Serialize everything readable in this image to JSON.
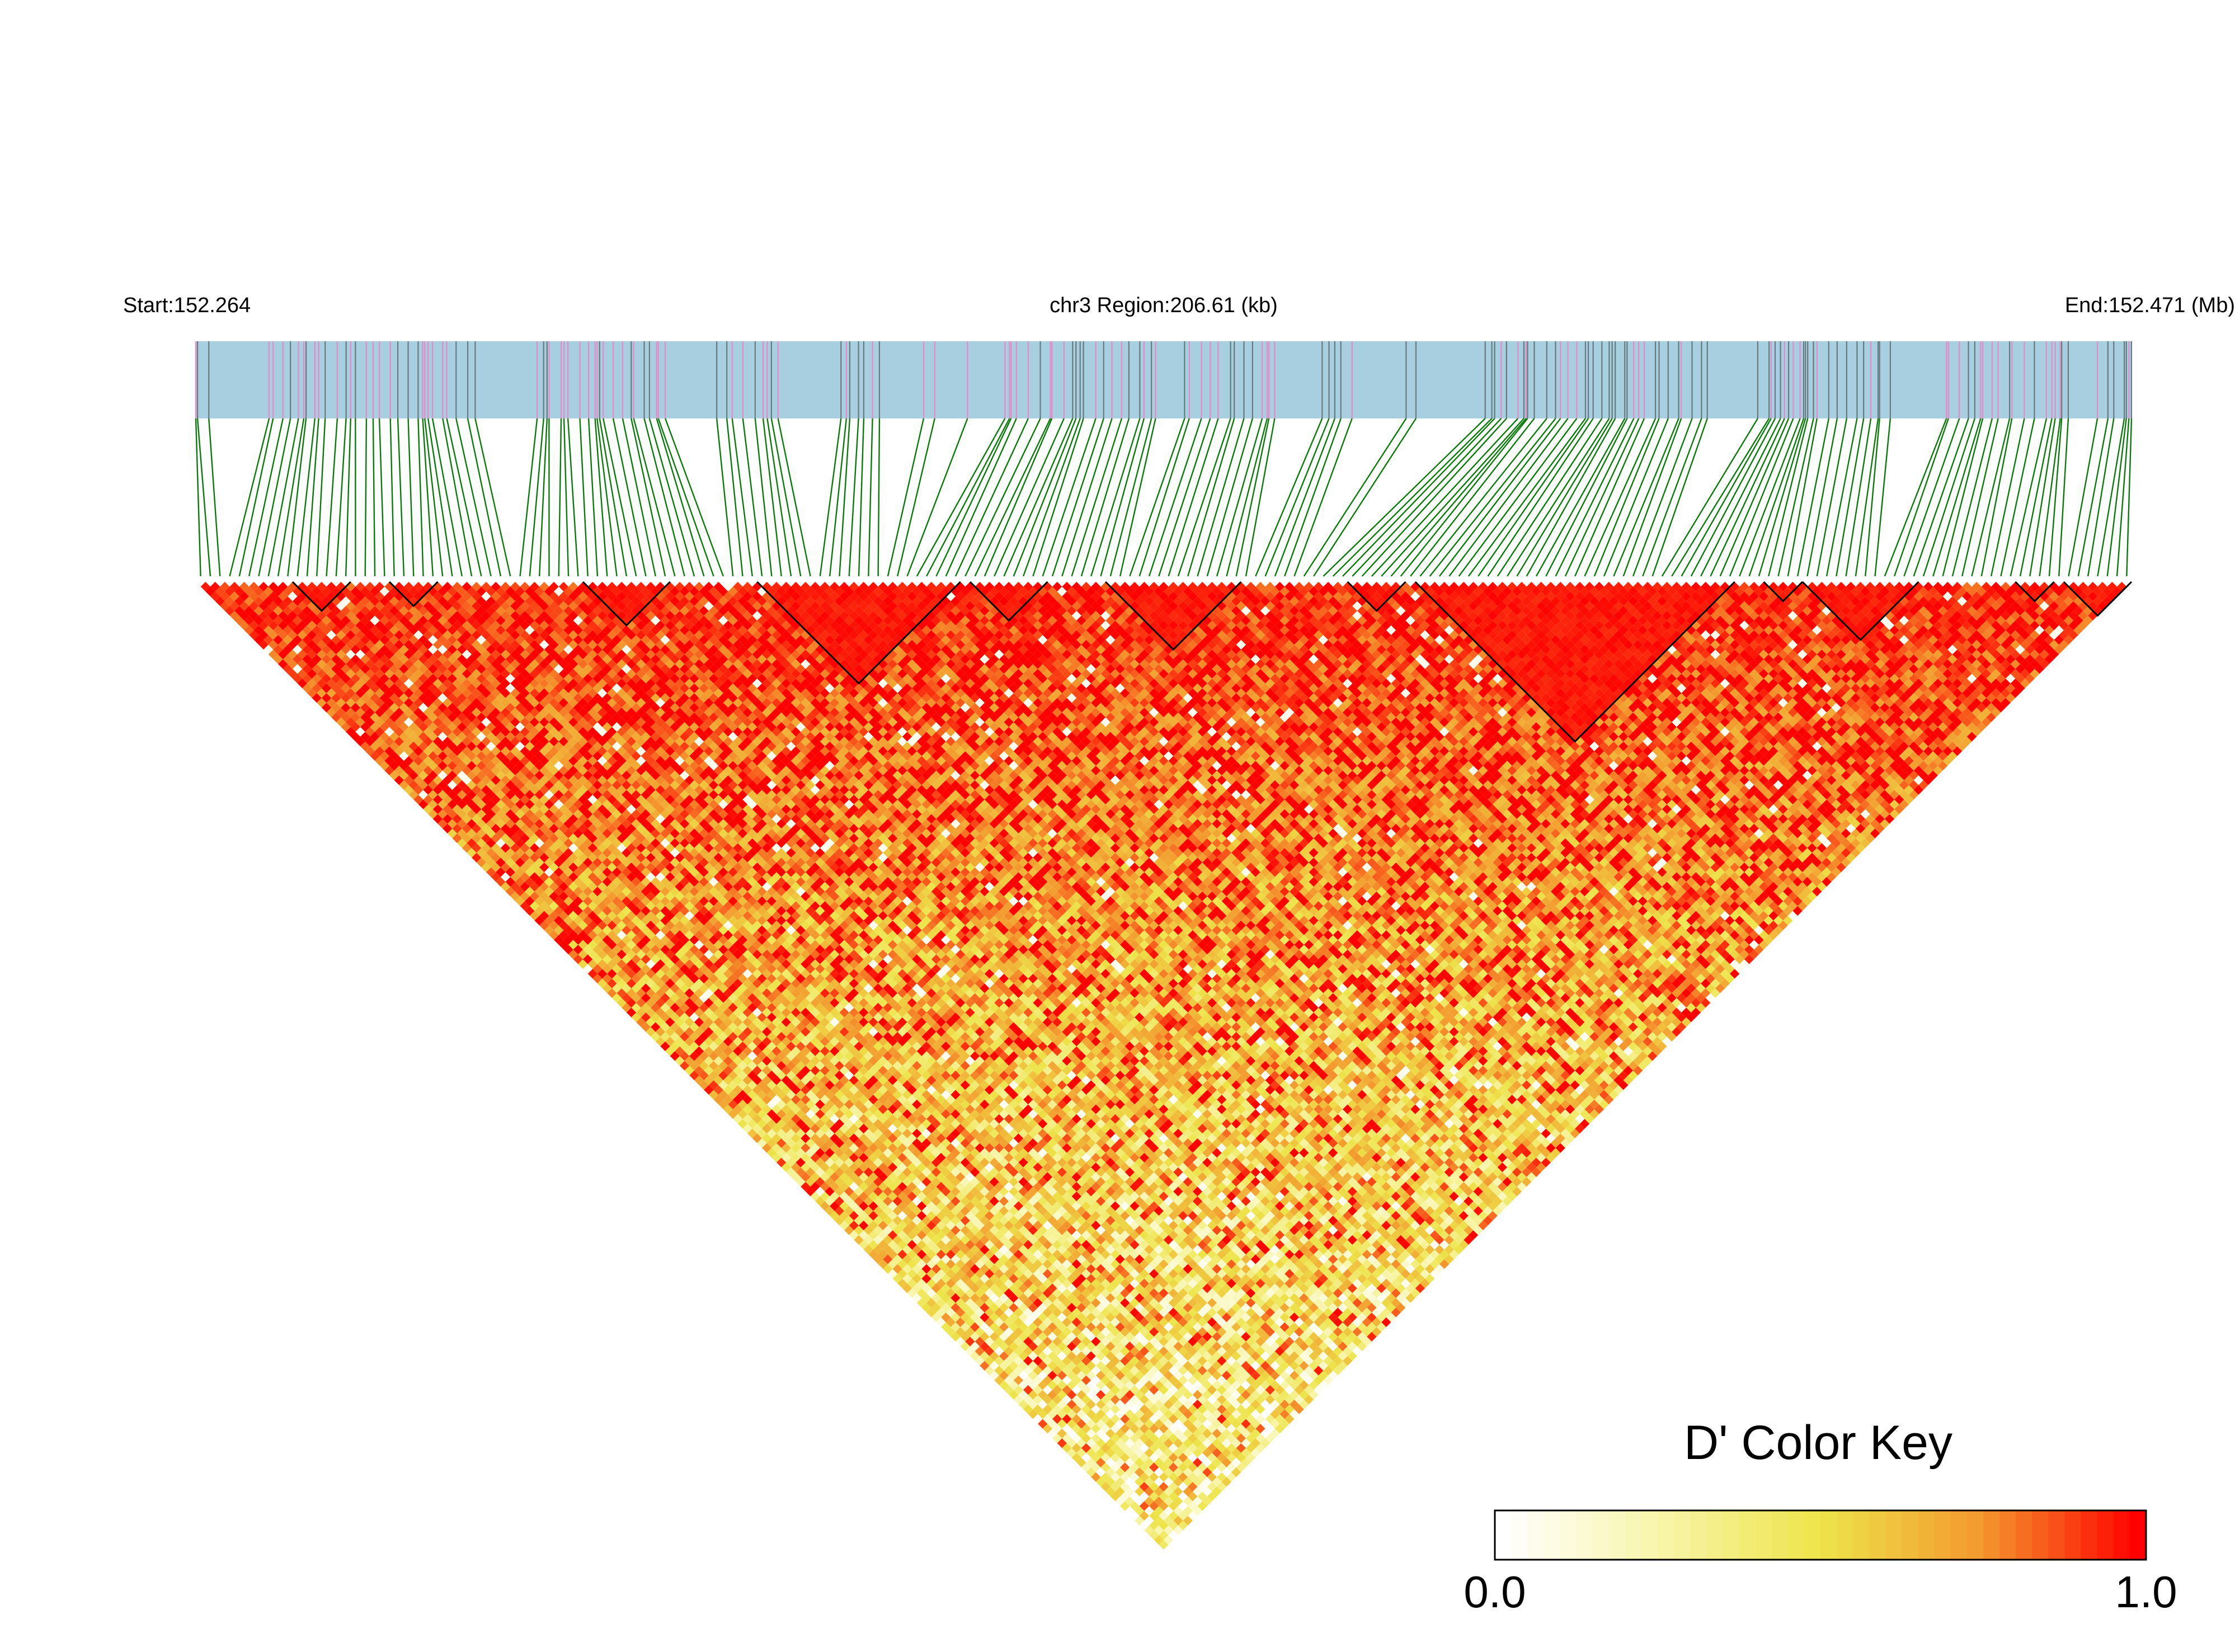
{
  "chart_data": {
    "type": "heatmap",
    "subtype": "linkage-disequilibrium-triangle",
    "header": {
      "start": "Start:152.264",
      "region": "chr3 Region:206.61 (kb)",
      "end": "End:152.471 (Mb)"
    },
    "region_mb": [
      152.264,
      152.471
    ],
    "n_snps": 200,
    "metric": "D'",
    "color_key": {
      "title": "D' Color Key",
      "min_label": "0.0",
      "max_label": "1.0",
      "min": 0.0,
      "max": 1.0,
      "stops": [
        "#ffffff",
        "#f8f5a8",
        "#ede44a",
        "#f39a2e",
        "#ff0000"
      ]
    },
    "colors": {
      "track_bg": "#a8cfe0",
      "snp_tick_pink": "#e489c9",
      "snp_tick_gray": "#667a80",
      "connector_line": "#0a7a0a",
      "block_outline": "#000000",
      "strong_ld": "#ff0000"
    },
    "ld_blocks_snp_ranges": [
      [
        10,
        15
      ],
      [
        20,
        24
      ],
      [
        40,
        48
      ],
      [
        58,
        78
      ],
      [
        80,
        87
      ],
      [
        94,
        107
      ],
      [
        119,
        124
      ],
      [
        126,
        158
      ],
      [
        162,
        165
      ],
      [
        166,
        177
      ],
      [
        188,
        191
      ],
      [
        193,
        199
      ]
    ]
  }
}
